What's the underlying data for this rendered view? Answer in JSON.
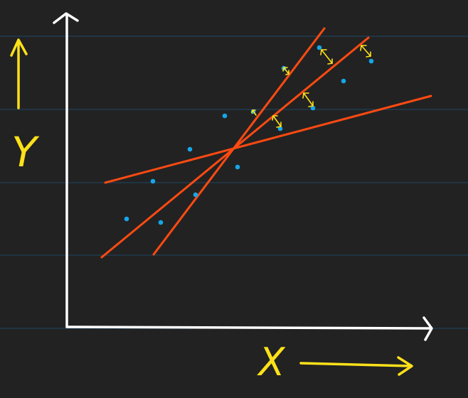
{
  "labels": {
    "y_axis": "Y",
    "x_axis": "X"
  },
  "colors": {
    "background": "#222222",
    "ruled_line": "#1f3f57",
    "axis": "#ffffff",
    "regression_line": "#ff4a12",
    "data_point": "#16a6e8",
    "annotation": "#ffe11a"
  }
}
